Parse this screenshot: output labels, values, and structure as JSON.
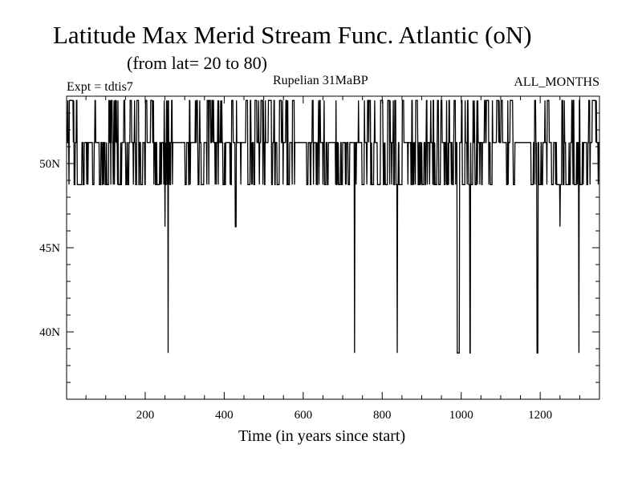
{
  "chart_data": {
    "type": "line",
    "title": "Latitude Max Merid Stream Func. Atlantic (oN)",
    "subtitle": "(from lat= 20 to 80)",
    "top_left_label": "Expt = tdtis7",
    "top_center_label": "Rupelian  31MaBP",
    "top_right_label": "ALL_MONTHS",
    "xlabel": "Time (in years since start)",
    "ylabel": "",
    "xlim": [
      1,
      1350
    ],
    "ylim": [
      36,
      54
    ],
    "x_ticks": [
      200,
      400,
      600,
      800,
      1000,
      1200
    ],
    "x_tick_labels": [
      "200",
      "400",
      "600",
      "800",
      "1000",
      "1200"
    ],
    "y_ticks": [
      40,
      45,
      50
    ],
    "y_tick_labels": [
      "40N",
      "45N",
      "50N"
    ],
    "levels": [
      38.75,
      46.25,
      48.75,
      51.25,
      53.75
    ],
    "baseline": 51.25,
    "series": [
      {
        "values_description_free": true,
        "dips": [
          {
            "x": 250,
            "y": 46.25
          },
          {
            "x": 258,
            "y": 38.75
          },
          {
            "x": 428,
            "y": 46.25
          },
          {
            "x": 730,
            "y": 38.75
          },
          {
            "x": 838,
            "y": 38.75
          },
          {
            "x": 990,
            "y": 38.75
          },
          {
            "x": 1022,
            "y": 38.75
          },
          {
            "x": 1192,
            "y": 38.75
          },
          {
            "x": 1250,
            "y": 46.25
          },
          {
            "x": 1298,
            "y": 38.75
          }
        ]
      }
    ],
    "grid": false,
    "line_color": "#000000"
  }
}
